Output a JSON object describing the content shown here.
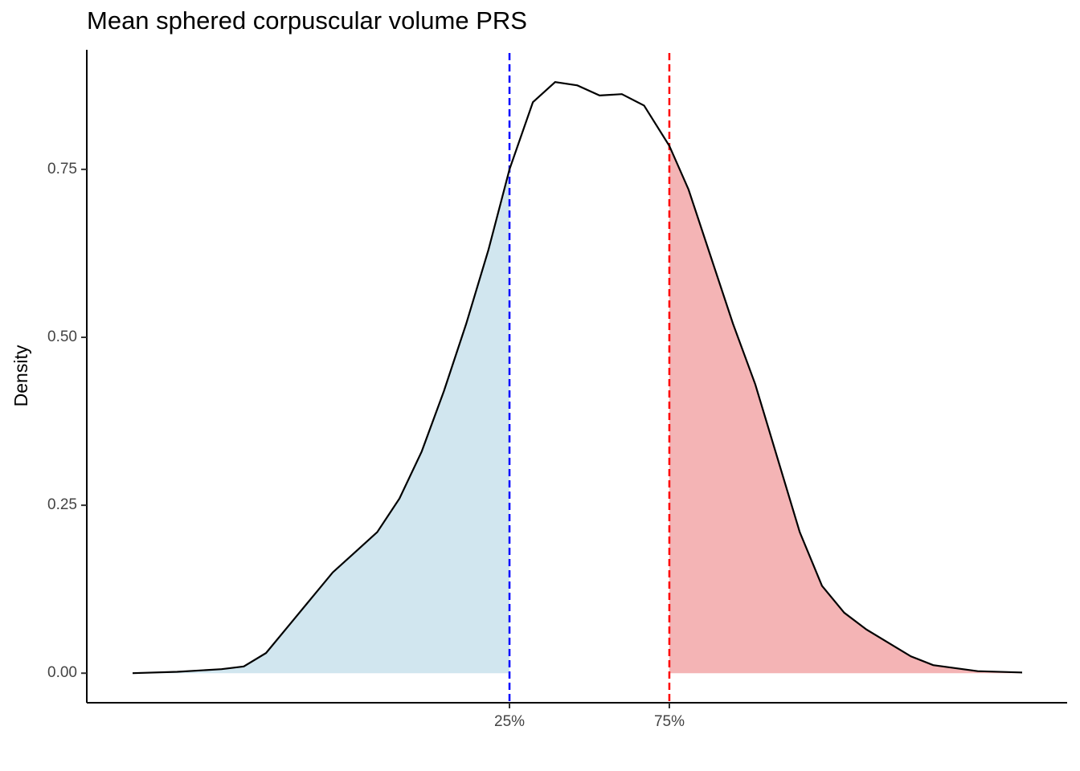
{
  "chart_data": {
    "type": "density",
    "title": "Mean sphered corpuscular volume PRS",
    "ylabel": "Density",
    "x": [
      0,
      5,
      10,
      12.5,
      15,
      17.5,
      20,
      22.5,
      25,
      27.5,
      30,
      32.5,
      35,
      37.5,
      40,
      42.37,
      45,
      47.5,
      50,
      52.5,
      55,
      57.5,
      60.34,
      62.5,
      65,
      67.5,
      70,
      72.5,
      75,
      77.5,
      80,
      82.5,
      85,
      87.5,
      90,
      95,
      100
    ],
    "values": [
      0,
      0.002,
      0.006,
      0.01,
      0.03,
      0.07,
      0.11,
      0.15,
      0.18,
      0.21,
      0.26,
      0.33,
      0.42,
      0.52,
      0.63,
      0.75,
      0.85,
      0.88,
      0.875,
      0.86,
      0.862,
      0.845,
      0.785,
      0.72,
      0.62,
      0.52,
      0.43,
      0.32,
      0.21,
      0.13,
      0.09,
      0.065,
      0.045,
      0.025,
      0.012,
      0.003,
      0.001
    ],
    "color": "#000000",
    "xlim": [
      -5.15,
      105.06
    ],
    "ylim": [
      -0.044,
      0.928
    ],
    "xticks": [
      {
        "value": 42.37,
        "label": "25%"
      },
      {
        "value": 60.34,
        "label": "75%"
      }
    ],
    "yticks": [
      {
        "value": 0,
        "label": "0.00"
      },
      {
        "value": 0.25,
        "label": "0.25"
      },
      {
        "value": 0.5,
        "label": "0.50"
      },
      {
        "value": 0.75,
        "label": "0.75"
      }
    ],
    "quantile_colors": [
      "#0000ff",
      "#ff0000"
    ],
    "fill_colors": [
      "#d1e6ef",
      "#f4b4b5"
    ]
  }
}
